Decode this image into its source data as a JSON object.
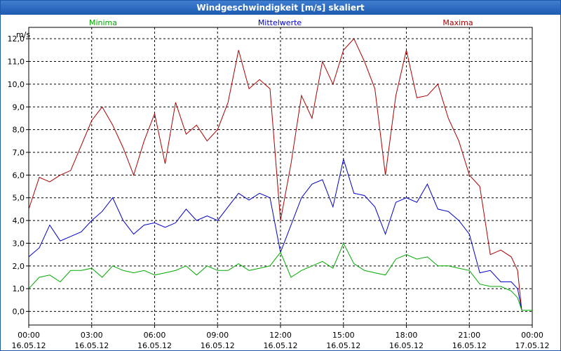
{
  "window": {
    "title": "Windgeschwindigkeit [m/s] skaliert"
  },
  "chart_data": {
    "type": "line",
    "title": "Windgeschwindigkeit [m/s] skaliert",
    "ylabel": "m/s",
    "xlabel": "",
    "ylim": [
      -0.6,
      12.5
    ],
    "xlim": [
      0,
      24
    ],
    "grid": true,
    "y_ticks": [
      "0,0",
      "1,0",
      "2,0",
      "3,0",
      "4,0",
      "5,0",
      "6,0",
      "7,0",
      "8,0",
      "9,0",
      "10,0",
      "11,0",
      "12,0"
    ],
    "x_ticks": [
      {
        "time": "00:00",
        "date": "16.05.12"
      },
      {
        "time": "03:00",
        "date": "16.05.12"
      },
      {
        "time": "06:00",
        "date": "16.05.12"
      },
      {
        "time": "09:00",
        "date": "16.05.12"
      },
      {
        "time": "12:00",
        "date": "16.05.12"
      },
      {
        "time": "15:00",
        "date": "16.05.12"
      },
      {
        "time": "18:00",
        "date": "16.05.12"
      },
      {
        "time": "21:00",
        "date": "16.05.12"
      },
      {
        "time": "00:00",
        "date": "17.05.12"
      }
    ],
    "legend": [
      {
        "name": "Minima",
        "color": "#00aa00"
      },
      {
        "name": "Mittelwerte",
        "color": "#0000cc"
      },
      {
        "name": "Maxima",
        "color": "#aa0000"
      }
    ],
    "series": [
      {
        "name": "Maxima",
        "color": "#aa0000",
        "x": [
          0,
          0.5,
          1,
          1.5,
          2,
          2.5,
          3,
          3.5,
          4,
          4.5,
          5,
          5.5,
          6,
          6.5,
          7,
          7.5,
          8,
          8.5,
          9,
          9.5,
          10,
          10.5,
          11,
          11.5,
          12,
          12.5,
          13,
          13.5,
          14,
          14.5,
          15,
          15.5,
          16,
          16.5,
          17,
          17.5,
          18,
          18.5,
          19,
          19.5,
          20,
          20.5,
          21,
          21.5,
          22,
          22.5,
          23,
          23.3,
          23.5,
          24
        ],
        "values": [
          4.5,
          5.9,
          5.7,
          6,
          6.2,
          7.3,
          8.4,
          9,
          8.2,
          7.2,
          6,
          7.5,
          8.7,
          6.5,
          9.2,
          7.8,
          8.2,
          7.5,
          8,
          9.2,
          11.5,
          9.8,
          10.2,
          9.8,
          4,
          6.5,
          9.5,
          8.5,
          11,
          10,
          11.5,
          12,
          11,
          9.8,
          6,
          9.5,
          11.5,
          9.4,
          9.5,
          10,
          8.5,
          7.5,
          6,
          5.5,
          2.5,
          2.7,
          2.4,
          1.8,
          0.05,
          0.05
        ]
      },
      {
        "name": "Mittelwerte",
        "color": "#0000cc",
        "x": [
          0,
          0.5,
          1,
          1.5,
          2,
          2.5,
          3,
          3.5,
          4,
          4.5,
          5,
          5.5,
          6,
          6.5,
          7,
          7.5,
          8,
          8.5,
          9,
          9.5,
          10,
          10.5,
          11,
          11.5,
          12,
          12.5,
          13,
          13.5,
          14,
          14.5,
          15,
          15.5,
          16,
          16.5,
          17,
          17.5,
          18,
          18.5,
          19,
          19.5,
          20,
          20.5,
          21,
          21.5,
          22,
          22.5,
          23,
          23.3,
          23.5,
          24
        ],
        "values": [
          2.4,
          2.8,
          3.8,
          3.1,
          3.3,
          3.5,
          4,
          4.4,
          5,
          4,
          3.4,
          3.8,
          3.9,
          3.7,
          3.9,
          4.5,
          4,
          4.2,
          4,
          4.6,
          5.2,
          4.9,
          5.2,
          5,
          2.6,
          3.8,
          5,
          5.6,
          5.8,
          4.6,
          6.7,
          5.2,
          5.1,
          4.6,
          3.4,
          4.8,
          5,
          4.8,
          5.6,
          4.5,
          4.4,
          4,
          3.4,
          1.7,
          1.8,
          1.3,
          1.3,
          1,
          0.05,
          0.05
        ]
      },
      {
        "name": "Minima",
        "color": "#00aa00",
        "x": [
          0,
          0.5,
          1,
          1.5,
          2,
          2.5,
          3,
          3.5,
          4,
          4.5,
          5,
          5.5,
          6,
          6.5,
          7,
          7.5,
          8,
          8.5,
          9,
          9.5,
          10,
          10.5,
          11,
          11.5,
          12,
          12.5,
          13,
          13.5,
          14,
          14.5,
          15,
          15.5,
          16,
          16.5,
          17,
          17.5,
          18,
          18.5,
          19,
          19.5,
          20,
          20.5,
          21,
          21.5,
          22,
          22.5,
          23,
          23.3,
          23.5,
          24
        ],
        "values": [
          1,
          1.5,
          1.6,
          1.3,
          1.8,
          1.8,
          1.9,
          1.5,
          2,
          1.8,
          1.7,
          1.8,
          1.6,
          1.7,
          1.8,
          2,
          1.6,
          2,
          1.8,
          1.8,
          2.1,
          1.8,
          1.9,
          2,
          2.6,
          1.5,
          1.8,
          2,
          2.2,
          1.9,
          3,
          2.1,
          1.8,
          1.7,
          1.6,
          2.3,
          2.5,
          2.3,
          2.4,
          2,
          2,
          1.9,
          1.8,
          1.2,
          1.1,
          1.1,
          0.9,
          0.6,
          0.05,
          0.05
        ]
      }
    ]
  }
}
